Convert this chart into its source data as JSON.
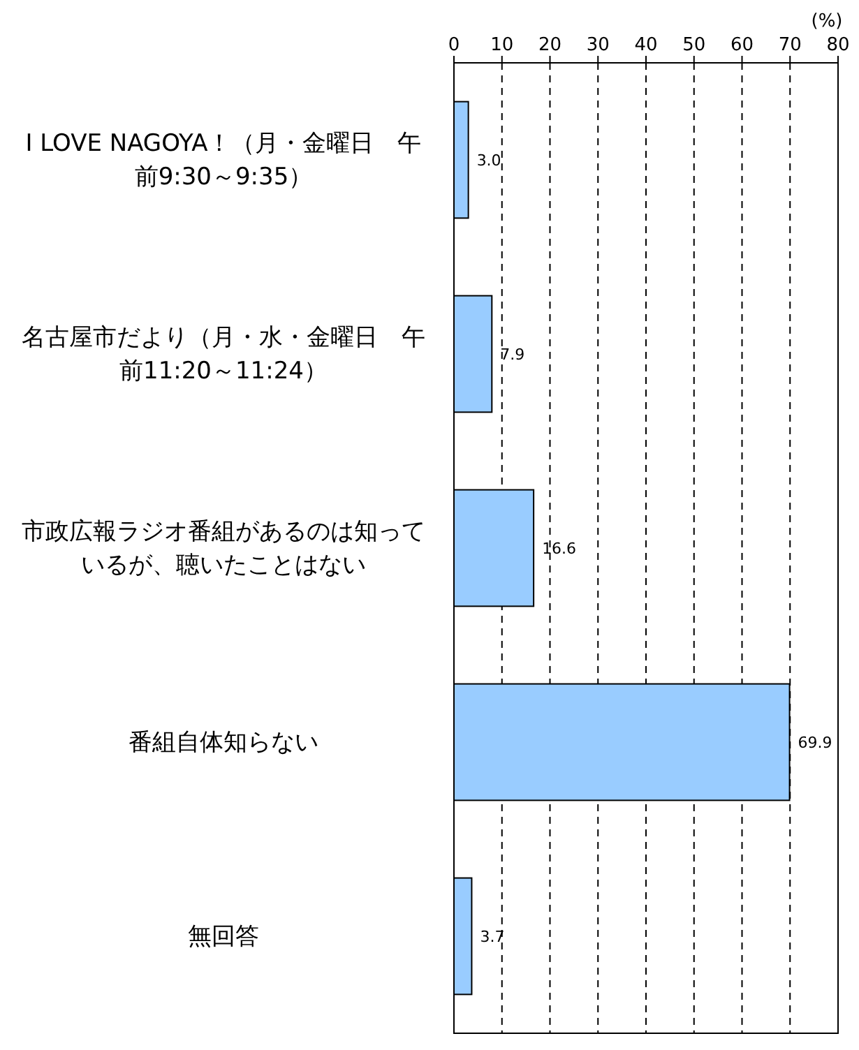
{
  "chart_data": {
    "type": "bar",
    "orientation": "horizontal",
    "xlabel": "(%)",
    "categories": [
      "I LOVE NAGOYA！（月・金曜日　午前9:30～9:35）",
      "名古屋市だより（月・水・金曜日　午前11:20～11:24）",
      "市政広報ラジオ番組があるのは知っているが、聴いたことはない",
      "番組自体知らない",
      "無回答"
    ],
    "values": [
      3.0,
      7.9,
      16.6,
      69.9,
      3.7
    ],
    "value_labels": [
      "3.0",
      "7.9",
      "16.6",
      "69.9",
      "3.7"
    ],
    "color": "#99ccff",
    "xlim": [
      0,
      80
    ],
    "xticks": [
      0,
      10,
      20,
      30,
      40,
      50,
      60,
      70,
      80
    ],
    "grid": "x"
  }
}
